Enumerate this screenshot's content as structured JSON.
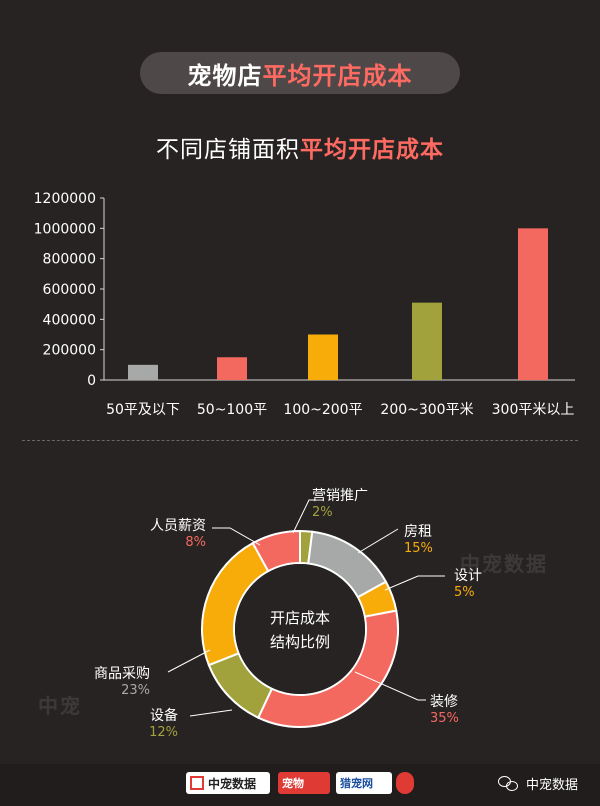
{
  "header": {
    "title_plain": "宠物店",
    "title_accent": "平均开店成本",
    "subtitle_plain": "不同店铺面积",
    "subtitle_accent": "平均开店成本"
  },
  "chart_data": [
    {
      "type": "bar",
      "title": "不同店铺面积平均开店成本",
      "categories": [
        "50平及以下",
        "50~100平",
        "100~200平",
        "200~300平米",
        "300平米以上"
      ],
      "values": [
        100000,
        150000,
        300000,
        510000,
        1000000
      ],
      "colors": [
        "#a7a9a9",
        "#f4695f",
        "#f7ac0a",
        "#a2a23d",
        "#f4695f"
      ],
      "yticks": [
        "1200000",
        "1000000",
        "800000",
        "600000",
        "400000",
        "200000",
        "0"
      ],
      "ylim": [
        0,
        1200000
      ],
      "grid": false
    },
    {
      "type": "pie",
      "center_label_line1": "开店成本",
      "center_label_line2": "结构比例",
      "slices": [
        {
          "name": "营销推广",
          "pct_label": "2%",
          "value": 2,
          "color": "#a2a23d"
        },
        {
          "name": "房租",
          "pct_label": "15%",
          "value": 15,
          "color": "#a7a9a9"
        },
        {
          "name": "设计",
          "pct_label": "5%",
          "value": 5,
          "color": "#f7ac0a"
        },
        {
          "name": "装修",
          "pct_label": "35%",
          "value": 35,
          "color": "#f4695f"
        },
        {
          "name": "设备",
          "pct_label": "12%",
          "value": 12,
          "color": "#a2a23d"
        },
        {
          "name": "商品采购",
          "pct_label": "23%",
          "value": 23,
          "color": "#f7ac0a"
        },
        {
          "name": "人员薪资",
          "pct_label": "8%",
          "value": 8,
          "color": "#f4695f"
        }
      ]
    }
  ],
  "watermarks": {
    "right": "中宠数据",
    "left": "中宠"
  },
  "footer": {
    "logo1": "中宠数据",
    "logo2": "宠物",
    "logo3": "猎宠网",
    "brand": "中宠数据"
  }
}
